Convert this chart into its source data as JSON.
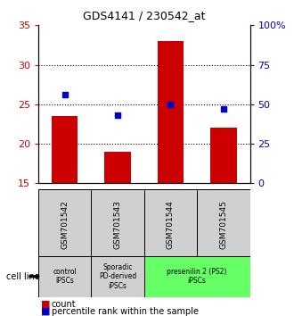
{
  "title": "GDS4141 / 230542_at",
  "samples": [
    "GSM701542",
    "GSM701543",
    "GSM701544",
    "GSM701545"
  ],
  "counts": [
    23.5,
    19.0,
    33.0,
    22.0
  ],
  "percentiles_pct": [
    56,
    43,
    50,
    47
  ],
  "ylim_left": [
    15,
    35
  ],
  "ylim_right": [
    0,
    100
  ],
  "yticks_left": [
    15,
    20,
    25,
    30,
    35
  ],
  "yticks_right": [
    0,
    25,
    50,
    75,
    100
  ],
  "bar_color": "#cc0000",
  "dot_color": "#0000cc",
  "bar_width": 0.5,
  "groups": [
    {
      "label": "control\nIPSCs",
      "indices": [
        0
      ],
      "color": "#d0d0d0"
    },
    {
      "label": "Sporadic\nPD-derived\niPSCs",
      "indices": [
        1
      ],
      "color": "#d0d0d0"
    },
    {
      "label": "presenilin 2 (PS2)\niPSCs",
      "indices": [
        2,
        3
      ],
      "color": "#66ff66"
    }
  ],
  "sample_box_color": "#d0d0d0",
  "cell_line_label": "cell line",
  "legend_count_label": "count",
  "legend_percentile_label": "percentile rank within the sample",
  "tick_color_left": "#cc0000",
  "tick_color_right": "#0000cc"
}
